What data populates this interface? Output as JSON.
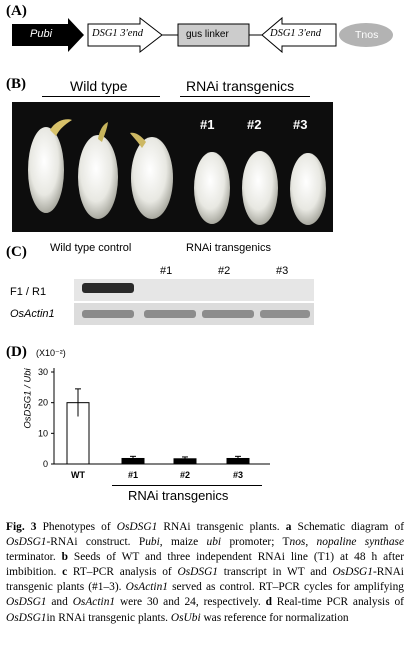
{
  "panelA": {
    "label": "(A)",
    "construct": {
      "pubi": "Pubi",
      "dsg1_sense": "DSG1 3'end",
      "linker": "gus linker",
      "dsg1_antisense": "DSG1 3'end",
      "tnos": "Tnos"
    }
  },
  "panelB": {
    "label": "(B)",
    "wild_type": "Wild type",
    "rnai": "RNAi transgenics",
    "lines": [
      "#1",
      "#2",
      "#3"
    ]
  },
  "panelC": {
    "label": "(C)",
    "wt_control": "Wild type control",
    "rnai": "RNAi transgenics",
    "lines": [
      "#1",
      "#2",
      "#3"
    ],
    "row1": "F1 / R1",
    "row2": "OsActin1"
  },
  "panelD": {
    "label": "(D)",
    "exponent": "(X10⁻²)",
    "ylabel": "OsDSG1 / Ubi",
    "xgroup": "RNAi transgenics"
  },
  "chart_data": {
    "type": "bar",
    "categories": [
      "WT",
      "#1",
      "#2",
      "#3"
    ],
    "values": [
      20,
      1.8,
      1.7,
      1.8
    ],
    "errors": [
      4.5,
      0.7,
      0.6,
      0.7
    ],
    "ylabel": "OsDSG1 / Ubi",
    "ylim": [
      0,
      30
    ],
    "yticks": [
      0,
      10,
      20,
      30
    ],
    "bar_colors": [
      "#ffffff",
      "#000000",
      "#000000",
      "#000000"
    ]
  },
  "caption": {
    "fig": "Fig. 3",
    "t1": " Phenotypes of ",
    "t2": "OsDSG1",
    "t3": " RNAi transgenic plants. ",
    "a": "a",
    "t4": " Schematic diagram of ",
    "t5": "OsDSG1",
    "t6": "-RNAi construct. P",
    "t7": "ubi",
    "t8": ", maize ",
    "t9": "ubi",
    "t10": " promoter; T",
    "t11": "nos",
    "t12": ", ",
    "t13": "nopaline synthase",
    "t14": " terminator. ",
    "b": "b",
    "t15": " Seeds of WT and three independent RNAi line (T1) at 48 h after imbibition. ",
    "c": "c",
    "t16": " RT–PCR analysis of ",
    "t17": "OsDSG1",
    "t18": " transcript in WT and ",
    "t19": "OsDSG1",
    "t20": "-RNAi transgenic plants (#1–3). ",
    "t21": "OsActin1",
    "t22": " served as control. RT–PCR cycles for amplifying ",
    "t23": "OsDSG1",
    "t24": " and ",
    "t25": "OsActin1",
    "t26": " were 30 and 24, respectively. ",
    "d": "d",
    "t27": " Real-time PCR analysis of ",
    "t28": "OsDSG1",
    "t29": "in RNAi transgenic plants. ",
    "t30": "OsUbi",
    "t31": " was reference for normalization"
  }
}
